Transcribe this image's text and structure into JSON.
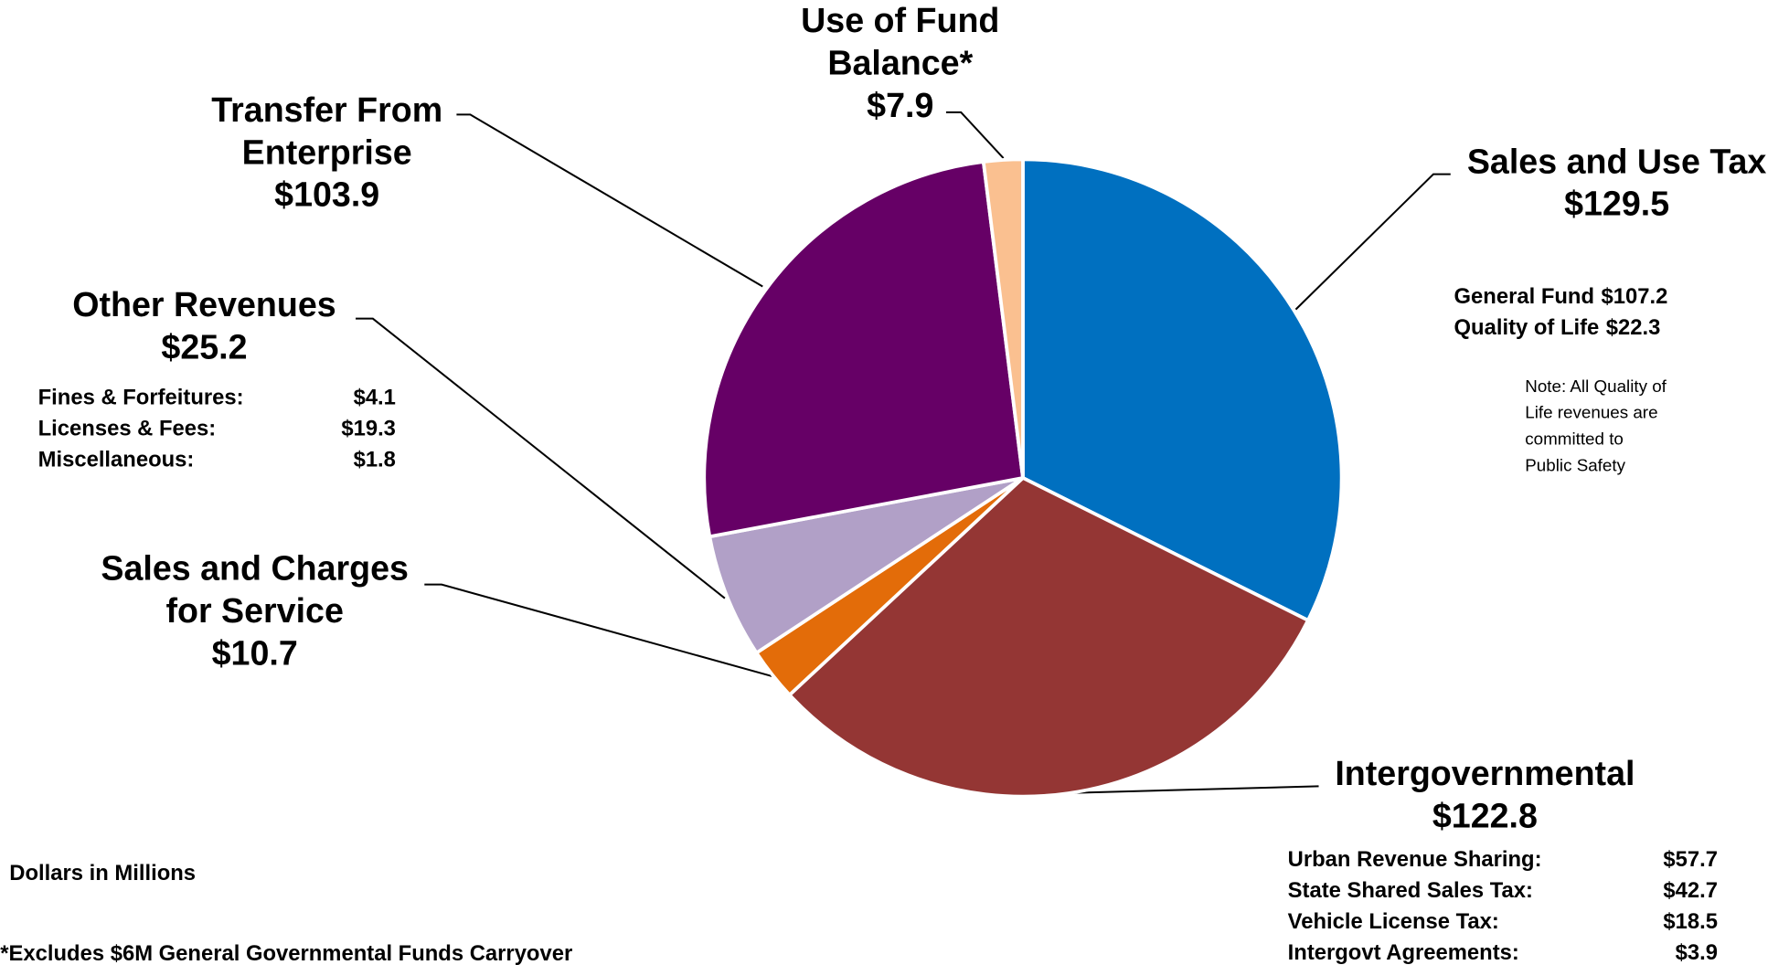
{
  "chart_data": {
    "type": "pie",
    "categories": [
      "Sales and Use Tax",
      "Intergovernmental",
      "Sales and Charges for Service",
      "Other Revenues",
      "Transfer From Enterprise",
      "Use of Fund Balance*"
    ],
    "values": [
      129.5,
      122.8,
      10.7,
      25.2,
      103.9,
      7.9
    ],
    "value_labels": [
      "$129.5",
      "$122.8",
      "$10.7",
      "$25.2",
      "$103.9",
      "$7.9"
    ],
    "colors": [
      "#0070C0",
      "#943634",
      "#E36C09",
      "#B1A0C7",
      "#660066",
      "#FAC090"
    ],
    "breakdowns": {
      "sales_tax": [
        {
          "label": "General Fund",
          "value": "$107.2"
        },
        {
          "label": "Quality of Life",
          "value": "$22.3"
        }
      ],
      "other": [
        {
          "label": "Fines & Forfeitures:",
          "value": "$4.1"
        },
        {
          "label": "Licenses & Fees:",
          "value": "$19.3"
        },
        {
          "label": "Miscellaneous:",
          "value": "$1.8"
        }
      ],
      "intergov": [
        {
          "label": "Urban Revenue Sharing:",
          "value": "$57.7"
        },
        {
          "label": "State Shared Sales Tax:",
          "value": "$42.7"
        },
        {
          "label": "Vehicle License Tax:",
          "value": "$18.5"
        },
        {
          "label": "Intergovt Agreements:",
          "value": "$3.9"
        }
      ]
    },
    "note": [
      "Note: All Quality of",
      "Life revenues are",
      "committed to",
      "Public Safety"
    ],
    "units_note": "Dollars in Millions",
    "footnote": "*Excludes $6M General Governmental Funds Carryover"
  }
}
